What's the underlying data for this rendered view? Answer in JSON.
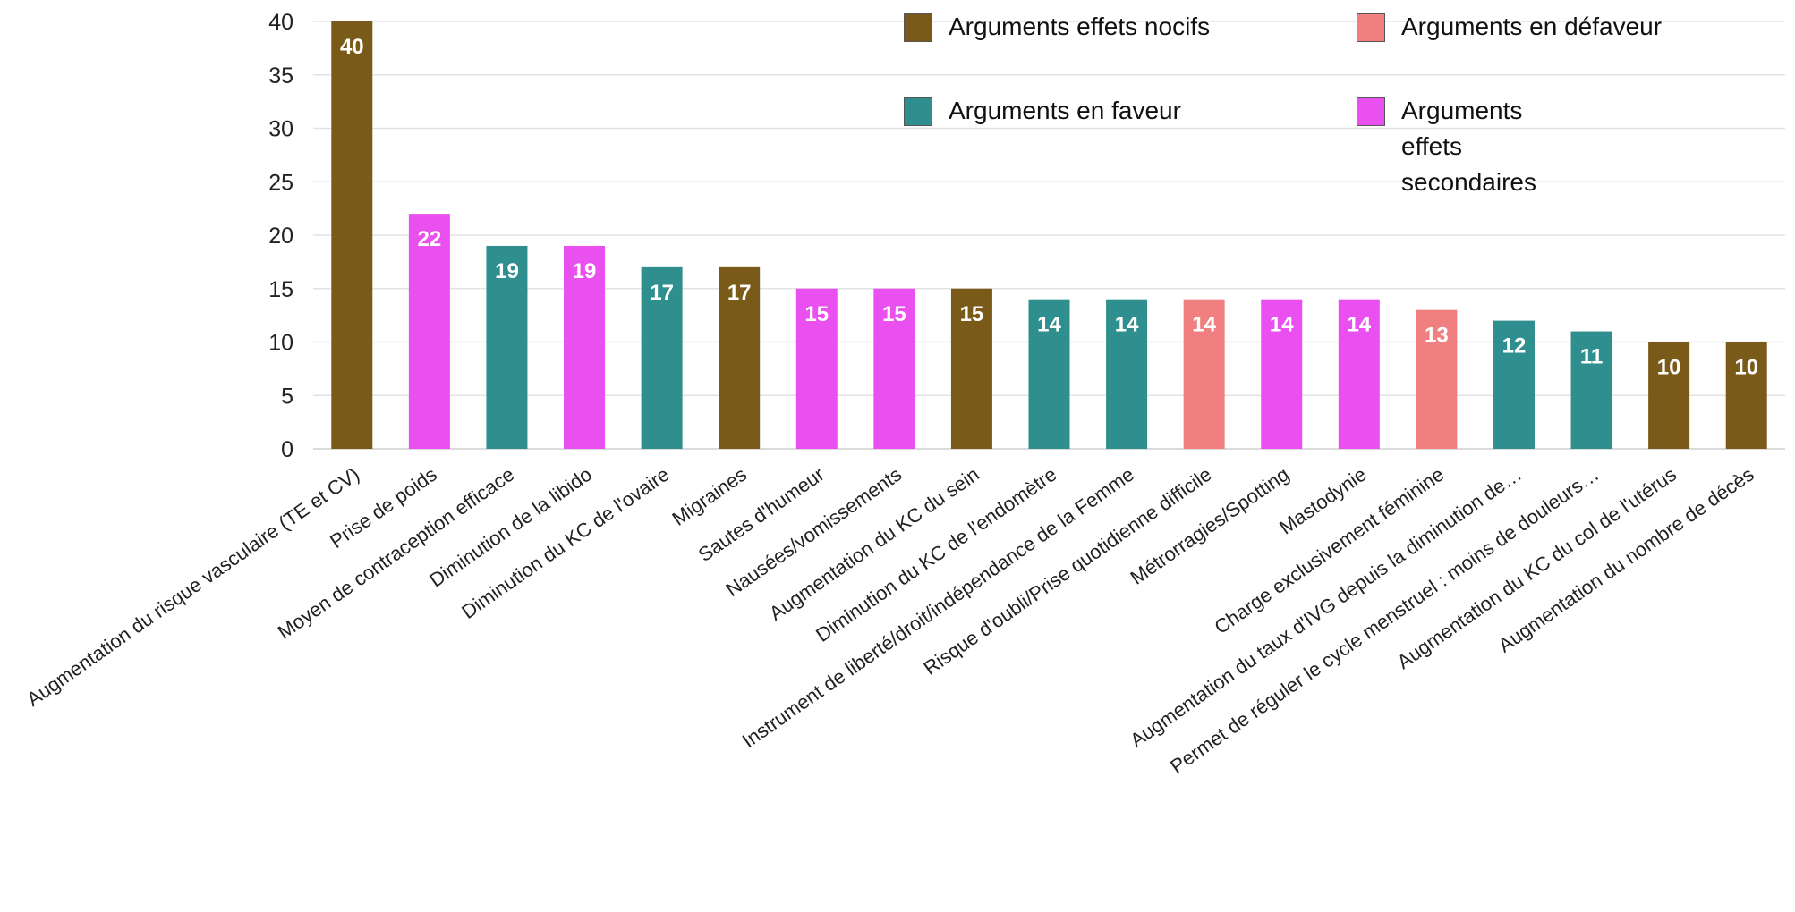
{
  "chart_data": {
    "type": "bar",
    "title": "",
    "xlabel": "",
    "ylabel": "",
    "ylim": [
      0,
      40
    ],
    "yticks": [
      0,
      5,
      10,
      15,
      20,
      25,
      30,
      35,
      40
    ],
    "grid": true,
    "legend_position": "top-right",
    "colors": {
      "nocifs": "#7a5a18",
      "defaveur": "#f08080",
      "faveur": "#2f8f8f",
      "secondaires": "#ea4ff0"
    },
    "legend": [
      {
        "key": "nocifs",
        "label": "Arguments effets nocifs"
      },
      {
        "key": "defaveur",
        "label": "Arguments en défaveur"
      },
      {
        "key": "faveur",
        "label": "Arguments en faveur"
      },
      {
        "key": "secondaires",
        "label": "Arguments effets secondaires"
      }
    ],
    "categories": [
      "Augmentation du risque vasculaire (TE et CV)",
      "Prise de poids",
      "Moyen de contraception efficace",
      "Diminution de la libido",
      "Diminution du KC de l'ovaire",
      "Migraines",
      "Sautes d'humeur",
      "Nausées/vomissements",
      "Augmentation du KC du sein",
      "Diminution du KC de l'endomètre",
      "Instrument de liberté/droit/indépendance de la Femme",
      "Risque d'oubli/Prise quotidienne difficile",
      "Métrorragies/Spotting",
      "Mastodynie",
      "Charge exclusivement féminine",
      "Augmentation du taux d'IVG depuis la diminution de…",
      "Permet de réguler le cycle menstruel : moins de douleurs…",
      "Augmentation du KC du col de l'utérus",
      "Augmentation du nombre de décès"
    ],
    "values": [
      40,
      22,
      19,
      19,
      17,
      17,
      15,
      15,
      15,
      14,
      14,
      14,
      14,
      14,
      13,
      12,
      11,
      10,
      10
    ],
    "bar_groups": [
      "nocifs",
      "secondaires",
      "faveur",
      "secondaires",
      "faveur",
      "nocifs",
      "secondaires",
      "secondaires",
      "nocifs",
      "faveur",
      "faveur",
      "defaveur",
      "secondaires",
      "secondaires",
      "defaveur",
      "faveur",
      "faveur",
      "nocifs",
      "nocifs"
    ]
  }
}
